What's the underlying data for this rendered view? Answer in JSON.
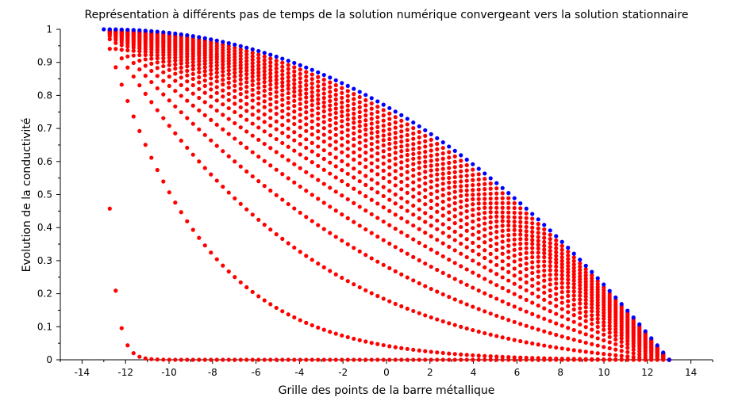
{
  "chart_data": {
    "type": "scatter",
    "title": "Représentation à différents pas de temps de la solution numérique convergeant vers la solution stationnaire",
    "xlabel": "Grille des points de la barre métallique",
    "ylabel": "Evolution de la conductivité",
    "xlim": [
      -15,
      15
    ],
    "ylim": [
      0,
      1
    ],
    "x_ticks": [
      -14,
      -12,
      -10,
      -8,
      -6,
      -4,
      -2,
      0,
      2,
      4,
      6,
      8,
      10,
      12,
      14
    ],
    "y_ticks": [
      0,
      0.1,
      0.2,
      0.3,
      0.4,
      0.5,
      0.6,
      0.7,
      0.8,
      0.9,
      1
    ],
    "x_tick_labels": [
      "-14",
      "-12",
      "-10",
      "-8",
      "-6",
      "-4",
      "-2",
      "0",
      "2",
      "4",
      "6",
      "8",
      "10",
      "12",
      "14"
    ],
    "y_tick_labels": [
      "0",
      "0.1",
      "0.2",
      "0.3",
      "0.4",
      "0.5",
      "0.6",
      "0.7",
      "0.8",
      "0.9",
      "1"
    ],
    "domain": [
      -13,
      13
    ],
    "grid_points": 96,
    "colors": {
      "numerical": "#ff0000",
      "stationary": "#0000ff"
    },
    "series": [
      {
        "kind": "numerical",
        "color": "#ff0000",
        "decay_length": 0.35
      },
      {
        "kind": "numerical",
        "color": "#ff0000",
        "decay_length": 4.5
      },
      {
        "kind": "numerical",
        "color": "#ff0000",
        "decay_length": 9
      },
      {
        "kind": "numerical",
        "color": "#ff0000",
        "decay_length": 13
      },
      {
        "kind": "numerical",
        "color": "#ff0000",
        "decay_length": 17
      },
      {
        "kind": "numerical",
        "color": "#ff0000",
        "decay_length": 21
      },
      {
        "kind": "numerical",
        "color": "#ff0000",
        "decay_length": 25
      },
      {
        "kind": "numerical",
        "color": "#ff0000",
        "decay_length": 29
      },
      {
        "kind": "numerical",
        "color": "#ff0000",
        "decay_length": 33
      },
      {
        "kind": "numerical",
        "color": "#ff0000",
        "decay_length": 38
      },
      {
        "kind": "numerical",
        "color": "#ff0000",
        "decay_length": 43
      },
      {
        "kind": "numerical",
        "color": "#ff0000",
        "decay_length": 49
      },
      {
        "kind": "numerical",
        "color": "#ff0000",
        "decay_length": 56
      },
      {
        "kind": "numerical",
        "color": "#ff0000",
        "decay_length": 64
      },
      {
        "kind": "numerical",
        "color": "#ff0000",
        "decay_length": 74
      },
      {
        "kind": "numerical",
        "color": "#ff0000",
        "decay_length": 86
      },
      {
        "kind": "numerical",
        "color": "#ff0000",
        "decay_length": 100
      },
      {
        "kind": "numerical",
        "color": "#ff0000",
        "decay_length": 120
      },
      {
        "kind": "numerical",
        "color": "#ff0000",
        "decay_length": 150
      },
      {
        "kind": "numerical",
        "color": "#ff0000",
        "decay_length": 200
      },
      {
        "kind": "numerical",
        "color": "#ff0000",
        "decay_length": 300
      },
      {
        "kind": "numerical",
        "color": "#ff0000",
        "decay_length": 600
      },
      {
        "kind": "stationary",
        "color": "#0000ff"
      }
    ],
    "grid": false,
    "legend": "none"
  }
}
